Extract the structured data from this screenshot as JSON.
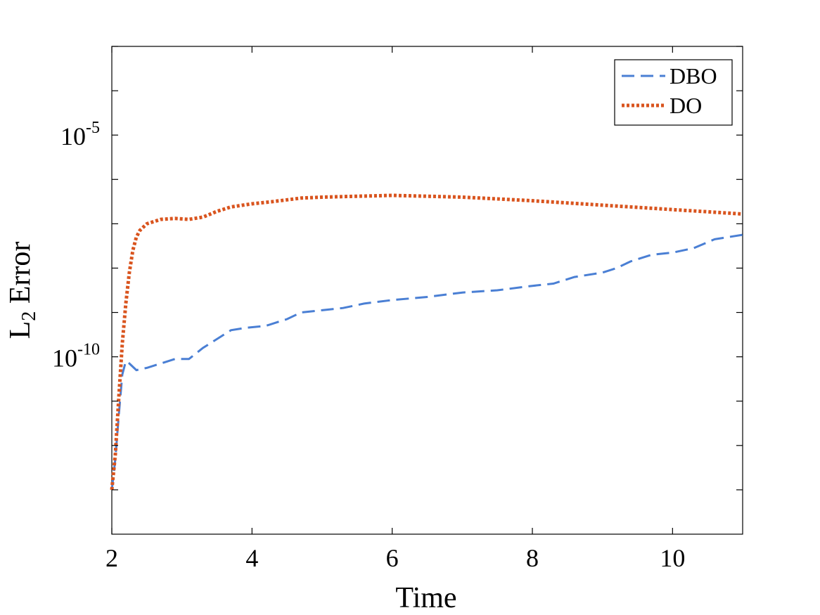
{
  "chart_data": {
    "type": "line",
    "title": "",
    "xlabel": "Time",
    "ylabel": {
      "main": "L",
      "sub": "2",
      "rest": " Error"
    },
    "xlim": [
      2,
      11
    ],
    "ylim_log10": [
      -14,
      -3
    ],
    "y_scale": "log",
    "x_ticks": [
      {
        "value": 2,
        "label": "2"
      },
      {
        "value": 4,
        "label": "4"
      },
      {
        "value": 6,
        "label": "6"
      },
      {
        "value": 8,
        "label": "8"
      },
      {
        "value": 10,
        "label": "10"
      }
    ],
    "y_ticks": [
      {
        "exp": -5,
        "base": "10",
        "power": "-5"
      },
      {
        "exp": -10,
        "base": "10",
        "power": "-10"
      }
    ],
    "y_minor_ticks_exp": [
      -13,
      -12,
      -11,
      -9,
      -8,
      -7,
      -6,
      -4,
      -3
    ],
    "legend_position": "top-right",
    "series": [
      {
        "name": "DBO",
        "color": "#4a7fd4",
        "style": "dashed",
        "points": [
          [
            2.0,
            -13.0
          ],
          [
            2.05,
            -12.3
          ],
          [
            2.1,
            -11.3
          ],
          [
            2.15,
            -10.4
          ],
          [
            2.2,
            -10.1
          ],
          [
            2.25,
            -10.15
          ],
          [
            2.35,
            -10.3
          ],
          [
            2.5,
            -10.25
          ],
          [
            2.7,
            -10.15
          ],
          [
            2.9,
            -10.05
          ],
          [
            3.1,
            -10.05
          ],
          [
            3.3,
            -9.8
          ],
          [
            3.5,
            -9.6
          ],
          [
            3.7,
            -9.4
          ],
          [
            3.9,
            -9.35
          ],
          [
            4.2,
            -9.3
          ],
          [
            4.5,
            -9.15
          ],
          [
            4.7,
            -9.0
          ],
          [
            5.0,
            -8.95
          ],
          [
            5.3,
            -8.9
          ],
          [
            5.6,
            -8.8
          ],
          [
            6.0,
            -8.72
          ],
          [
            6.5,
            -8.65
          ],
          [
            7.0,
            -8.55
          ],
          [
            7.5,
            -8.5
          ],
          [
            8.0,
            -8.4
          ],
          [
            8.3,
            -8.35
          ],
          [
            8.6,
            -8.2
          ],
          [
            9.0,
            -8.1
          ],
          [
            9.2,
            -8.0
          ],
          [
            9.4,
            -7.85
          ],
          [
            9.7,
            -7.7
          ],
          [
            10.0,
            -7.65
          ],
          [
            10.3,
            -7.55
          ],
          [
            10.6,
            -7.35
          ],
          [
            11.0,
            -7.25
          ]
        ]
      },
      {
        "name": "DO",
        "color": "#d9541e",
        "style": "dotted",
        "points": [
          [
            2.0,
            -13.0
          ],
          [
            2.05,
            -12.2
          ],
          [
            2.1,
            -10.9
          ],
          [
            2.15,
            -9.7
          ],
          [
            2.2,
            -8.8
          ],
          [
            2.25,
            -8.1
          ],
          [
            2.3,
            -7.6
          ],
          [
            2.35,
            -7.3
          ],
          [
            2.4,
            -7.15
          ],
          [
            2.5,
            -7.0
          ],
          [
            2.7,
            -6.9
          ],
          [
            2.9,
            -6.88
          ],
          [
            3.1,
            -6.9
          ],
          [
            3.3,
            -6.85
          ],
          [
            3.5,
            -6.72
          ],
          [
            3.7,
            -6.62
          ],
          [
            4.0,
            -6.55
          ],
          [
            4.3,
            -6.5
          ],
          [
            4.7,
            -6.42
          ],
          [
            5.0,
            -6.4
          ],
          [
            5.5,
            -6.38
          ],
          [
            6.0,
            -6.36
          ],
          [
            6.5,
            -6.38
          ],
          [
            7.0,
            -6.4
          ],
          [
            7.5,
            -6.44
          ],
          [
            8.0,
            -6.48
          ],
          [
            8.5,
            -6.53
          ],
          [
            9.0,
            -6.58
          ],
          [
            9.5,
            -6.63
          ],
          [
            10.0,
            -6.68
          ],
          [
            10.5,
            -6.73
          ],
          [
            11.0,
            -6.78
          ]
        ]
      }
    ]
  }
}
